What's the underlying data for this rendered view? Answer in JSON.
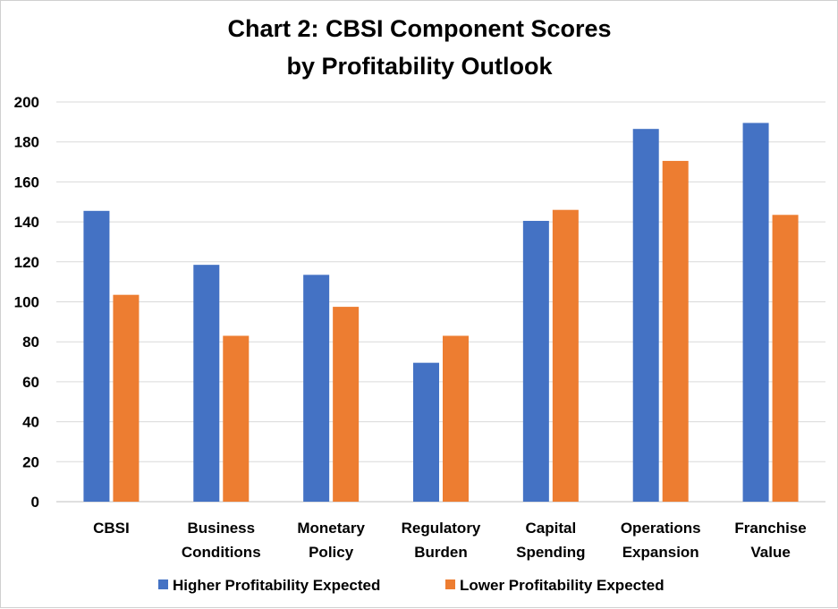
{
  "chart_data": {
    "type": "bar",
    "title": "Chart 2: CBSI Component Scores",
    "subtitle": "by Profitability Outlook",
    "categories": [
      [
        "CBSI"
      ],
      [
        "Business",
        "Conditions"
      ],
      [
        "Monetary",
        "Policy"
      ],
      [
        "Regulatory",
        "Burden"
      ],
      [
        "Capital",
        "Spending"
      ],
      [
        "Operations",
        "Expansion"
      ],
      [
        "Franchise",
        "Value"
      ]
    ],
    "series": [
      {
        "name": "Higher Profitability Expected",
        "color": "#4472c4",
        "values": [
          145.5,
          118.5,
          113.5,
          69.5,
          140.5,
          186.5,
          189.5
        ]
      },
      {
        "name": "Lower Profitability Expected",
        "color": "#ed7d31",
        "values": [
          103.5,
          83,
          97.5,
          83,
          146,
          170.5,
          143.5
        ]
      }
    ],
    "ylim": [
      0,
      200
    ],
    "yticks": [
      0,
      20,
      40,
      60,
      80,
      100,
      120,
      140,
      160,
      180,
      200
    ],
    "grid": true,
    "legend_position": "bottom",
    "xlabel": "",
    "ylabel": ""
  }
}
